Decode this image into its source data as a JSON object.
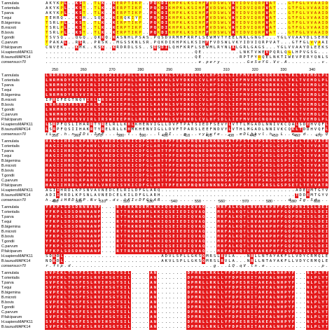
{
  "species": [
    "T.annulata",
    "T.orientalis",
    "T.parva",
    "T.equi",
    "B.bigemina",
    "B.microti",
    "B.bovis",
    "T.gondii",
    "C.parvum",
    "P.falciparum",
    "H.sapiensMAPK11",
    "B.taurusMAPK14"
  ],
  "consensus_label": "consensus>70",
  "blocks": [
    {
      "ruler": [],
      "rows": [
        "AKYKPL..KST..TLK..KERPTIKP..PQKDIKHPKLKSIHFFVDSWLVKYIDVIQRPVAT...GTFGLVVAAIDLTIEKENVVAIKK",
        "AKYKPL..KST..TLK..KERPTIKP..PQKDIKHPKLKSIHFFVDSWLVKYIDVIQRPVAT...GTFGLVVAAIDLTIEKENVVAIKK",
        "AKYKPL..KST..TLK..KERPTIKP..PQKDIKHPKLKSIHFFVDSWLVKYIDVIQRPVAT...GTFGLVVAAIDLTIEKENVVAIKK",
        "TEHRQ...KSH..SQK..KERQKIYP..PQKDIKHPKLKSIHFFVDSWLVKYIDVIQRPVAT...GTFGLVVAAIDLTIEKENVVAIKK",
        "TSRLPL..KST..TLK..KERPTIKP..PQKDIKHPKLKSIHFFVDSWLVKYIDVIQRPVAT...GTFGLVVAAIDLTIEKENVVAIKK",
        "TSRLPL..KST..TLK..KERPTIKP..PQKDIKHPKLKSIHFFVDSWLVKYIDVIQRPVAT...GTFGLVVAAIDLTIEKENVVAIKK",
        "TSRLPL..KST..TLK..KERPTIKP..PQKDIKHPKLKSIHFFVDSWLVKYIDVIQRPVAT...GTFGLVVAAIDLTIEKENVVAIKK",
        "TSVSQ...QGQ..QKKQ.KASNHLPSAS.PQSDVRMHFRRFLSEWMVTYEELNRLGNGT...YGLVVAAYDLSEHRRVAVIKK",
        "TPAKAL..RSR..PRSK..MGSSKNLSR.PQKDIKHPKLKSIHFFVDSWLVKYIDVIQRPVAT...GTFGLVVAAIDLTIEKENVVAIKK",
        "CNVEK...KHK..KSK..KRDRDLSS..SQSDILQHFKRFLSEWMLRYNLKLGRLGAGS...YGLVVAAYDLEEKSEVAVIKK",
        "........................................QE..........LNKTVWEVPQRLQGLHPVGSG...AYGSVCSAYDARLRQKVAVKK",
        "........................................QE..........RPTFYRQELNKTIWEVPERYQNLSPVGSG...AYGSVCAAFDTKTGLRVAVKK",
        ".........................................e.pery.......GeSeYG.Vc.A.........v..IKK"
      ]
    },
    {
      "ruler": [
        "250",
        "260",
        "270",
        "280",
        "290",
        "300",
        "310",
        "320",
        "330",
        "340"
      ],
      "rows": [
        "LNRMNDYRSVVIRLIRSWIEEPHLLKNILKAVNLSVYDKDLCVLHFSDLLIEFMVIHCNQRKKLLTKLTVEMDLPLLRDMQLVMDLDWAYG",
        "LNRMNDYRSVVIRLIRSWIEEPHLLKNILKAVNLSVYDKDLCVLHFSDLLIEFMVIHCNQRKKLLTKLTVEMDLPLLRDMQLVMDLDWAYG",
        "LNRMNDYRSVVIRLIRSWIEEPHLLKNILKAVNLSVYDKDLCVLHFSDLLIEFMVIHCNQRKKLLTKLTVEMDLPLLRDMQLVMDLDWAYG",
        "LNRMNDYRSVVIRLIRSWIEEPHLLKNILKAVNLSVYDKDLCVLHFSDLLIEFMVIHCNQRKKLLTKLTVEMDLPLLRDMQLVMDLDWAYG",
        "LNRMNDYRSVVIRLIRSWIEEPHLLKNILKAVNLSVYDKDLCVLHFSDLLIEFMVIHCNQRKKLLTKLTVEMDLPLLRDMQLVMDLDWAYG",
        "IPRIFEGTNQYIRLLRSWIEEPHLLKNILKAVNLSVYDKDLCVLHFSDLLIEFMVIHCNQRKKLLTKLTVEMDLPLLRDMQLVMDLDWAYG",
        "LNRMNDYRSVVIRLIRSWIEEPHLLKNILKAVNLSVYDKDLCVLHFSDLLIEFMVIHCNQRKKLLTKLTVEMDLPLLRDMQLVMDLDWAYG",
        "LNRMNDYRSVVIRLIRSWIEEPHLLKNILKAVNLSVYDKDLCVLHFSDLLIEFMVIHCNQRKKLLTKLTVEMDLPLLRDMQLVMDLDWAYG",
        "LNRMNDYRSVVIRLIRSWIEEPHLLKNILKAVNLSVYDKDLCVLHFSDLLIEFMVIHCNQRKKLLTKLTVEMDLPLLRDMQLVMDLDWAYG",
        "LNRMNDYRSVVIRLIRSWIEEPHLLKNILKAVNLSVYDKDLCVLHFSDLLIEFMVIHCNQRKKLLTKLTVEMDLPLLRDMQLVMDLDWAYG",
        "LSRPFQSLIHARRTYRELRLLKHLKHENVIGLLDVFTPATSIEDFSEVYLVTTLMGADLNNIVKCQALSDEHVQFLVYQLLRGLKYIHS",
        "LSRPFQSIIHAKRTYRELRLLKHMKHENVIGLLDVFTPARSLEEFNDVYLVTHLMGADLNNIVKCQKLTDDHVQFLIYQILRGLKYIHS",
        "iL.r.h.n.IDi.IrE...L..l..i....l.DI...g...vyLvfe.....mDLhkvl.h..L..e..d...i.QiL.....lh.."
      ]
    },
    {
      "ruler": [
        "350",
        "360",
        "370",
        "380",
        "390",
        "400",
        "410",
        "420",
        "430",
        "440",
        "450",
        "460",
        "470"
      ],
      "rows": [
        "HAGIIHRDLKPANVLVNEDCSVKICDFGLARTTPFEKKPNQNEDNKNNSATPFSTRTPSRSLGSPSETLTEYVATRWYRAPEILLGSNK",
        "HAGIIHRDLKPANVLVNEDCSVKICDFGLARTTPFEKKPNQNEDNKNNSATPFSTRTPSRSLGSPSETLTEYVATRWYRAPEILLGSNK",
        "HAGIIHRDLKPANVLVNEDCSVKICDFGLARTTPFEKKPNQNEDNKNNSATPFSTRTPSRSLGSPSETLTEYVATRWYRAPEILLGSNK",
        "HAGIIHRDLKPANVLVNEDCSVKICDFGLARTTPFEKKPNQNEDNKNNSATPFSTRTPSRSLGSPSETLTEYVATRWYRAPEILLGSNK",
        "HAGIIHRDLKPANVLVNEDCSVKICDFGLARTTPFEKKPNQNEDNKNNSATPFSTRTPSRSLGSPSETLTEYVATRWYRAPEILLGSNK",
        "HAGIIHRDLKPANVLVNEDCSVKICDFGLARTTPFEKKPNQNEDNKNNSATPFSTRTPSRSLGSPSETLTEYVATRWYRAPEILLGSNK",
        "HAGIIHRDLKPANVLVNEDCSVKICDFGLARTTPFEKKPNQNEDNKNNSATPFSTRTPSRSLGSPSETLTEYVATRWYRAPEILLGSNK",
        "HAGIIHRDLKPANVLVNEDCSVKICDFGLARTTPFEKKPNQNEDNKNNSATPFSTRTPSRSLGSPSETLTEYVATRWYRAPEILLGSNK",
        "HAGIIHRDLKPANVLVNEDCSVKICDFGLARTTPFEKKPNQNEDNKNNSATPFSTRTPSRSLGSPSETLTEYVATRWYRAPEILLGSNK",
        "HAGIIHRDLKPANVLVNEDCSVKICDFGLARTTPFEKKPNQNEDNKNNSATPFSTRTPSRSLGSPSETLTEYVATRWYRAPEILLGSNK",
        "AGIIHRDLKPSNVAVNEDCELRILDFGLARQ....................................ADEEMTGYVATRWYRAPEIMLNWMH",
        "ADIIHRDLKPSNLAVNEDCELKILDFGLARH....................................TDDEMTGYVATRWYRAPEIMLNWMH",
        "h.giiHRDlKP.Nvl.n.dc.lKIcDFGLAR..................................d..Ig.Sd.........tryvaTrWYRAPE.ll"
      ]
    },
    {
      "ruler": [
        "490",
        "500",
        "510",
        "520",
        "530",
        "540",
        "550",
        "560",
        "570",
        "580",
        "590",
        "600"
      ],
      "rows": [
        "YFKPLSDSDNNNANP....RTTRKNDRMLKKIQSEIEDIQVAQ...MRFALKQTLRVAKKPHFFGQPDNISSLDEIKFLCLTG",
        "YFKPLSDSDNNNANP....RTTRKNDRMLKKIQSEIEDIQVAQ...MRFALKQTLRVAKKPHFFGQPDNISSLDEIKFLCLTG",
        "YFKPLSDSDNNNANP....RTTRKNDRMLKKIQSEIEDIQVAQ...MRFALKQTLRVAKKPHFFGQPDNISSLDEIKFLCLTG",
        "YFKPLSDSDNNNANP....RTTRKNDRMLKKIQSEIEDIQVAQ...MRFALKQTLRVAKKPHFFGQPDNISSLDEIKFLCLTG",
        "YFKPLSDSDNNNANP....RTTRKNDRMLKKIQSEIEDIQVAQ...MRFALKQTLRVAKKPHFFGQPDNISSLDEIKFLCLTG",
        "YFKPLSDSDNNNANP....RTTRKNDRMLKKIQSEIEDIQVAQ...MRFALKQTLRVAKKPHFFGQPDNISSLDEIKFLCLTG",
        "YFKPLSDSDNNNANP....RTTRKNDRMLKKIQSEIEDIQVAQ...MRFALKQTLRVAKKPHFFGQPDNISSLDEIKFLCLTG",
        "YFKPLSDSDNNNANP....RTTRKNDRMLKKIQSEIEDIQVAQ...MRFALKQTLRVAKKPHFFGQPDNISSLDEIKFLCLTG",
        "YFKPLSDSDNNNANP....RTTRKNDRMLKKIQSEIEDIQVAQ...MRFALKQTLRVAKKPHFFGQPDNISSLDEIKFLCLTG",
        "YFKPLSDSDNNNANP....RTTRKNDRMLKKIQSEIEDIQVAQ...MRFALKQTLRVAKKPHFFGQPDNISSLDEIKFLCLTG",
        "SDKDL..........................ADVLSPLLGKSQMRSLRVLA...NRLLNTAYAKFLLVDYCRMQLEHLISDSRGHD",
        "NDKDL..........................AKVLSPLLGKSQMRSLRVLA...NRLLNTAYAKFLLVDYCRMQLEHLISDSRGHD",
        "r.ftp.d......................................g...LQ.qV.ln.e...............p...l..s..lFPG."
      ]
    },
    {
      "ruler": [
        "",
        ""
      ],
      "rows": [
        "SVPEKLTNSFESLRVIHSGTSIL.....AN........DPMRLLRKLLYFDPESRITAKEALNHPYF...NLPLYTEVGKVVNNNE",
        "SVPEKLTNSFESLRVIHSGTSIL.....AN........DPMRLLRKLLYFDPESRITAKEALNHPYF...NLPLYTEVGKVVNNNE",
        "SVPEKLTNSFESLRVIHSGTSIL.....AN........DPMRLLRKLLYFDPESRITAKEALNHPYF...NLPLYTEVGKVVNNNE",
        "SVPEKLTNSFESLRVIHSGTSIL.....AN........DPMRLLRKLLYFDPESRITAKEALNHPYF...NLPLYTEVGKVVNNNE",
        "SVPEKLTNSFESLRVIHSGTSIL.....AN........DPMRLLRKLLYFDPESRITAKEALNHPYF...NLPLYTEVGKVVNNNE",
        "SVPEKLTNSFESLRVIHSGTSIL.....AN........DPMRLLRKLLYFDPESRITAKEALNHPYF...NLPLYTEVGKVVNNNE",
        "SVPEKLTNSFESLRVIHSGTSIL.....AN........DPMRLLRKLLYFDPESRITAKEALNHPYF...NLPLYTEVGKVVNNNE",
        "SVPEKLTNSFESLRVIHSGTSIL.....AN........DPMRLLRKLLYFDPESRITAKEALNHPYF...NLPLYTEVGKVVNNNE",
        "SVPEKLTNSFESLRVIHSGTSIL.....AN........DPMRLLRKLLYFDPESRITAKEALNHPYF...NLPLYTEVGKVVNNNE",
        "SVPEKLTNSFESLRVIHSGTSIL.....AN........DPMRLLRKLLYFDPESRITAKEALNHPYF...NLPLYTEVGKVVNNNE",
        "SVPEKLTNSFESLRVIHSGTSIL.....AN........DPMRLLRKLLYFDPESRITAKEALNHPYF...NLPLYTEVGKVVNNNE",
        "SVPEKLTNSFESLRVIHSGTSIL.....AN........DPMRLLRKLLYFDPESRITAKEALNHPYF...NLPLYTEVGKVVNNNE"
      ]
    }
  ],
  "colors": {
    "identical": "#e41a1c",
    "similar": "#ffff19",
    "similar_text": "#c00000"
  }
}
